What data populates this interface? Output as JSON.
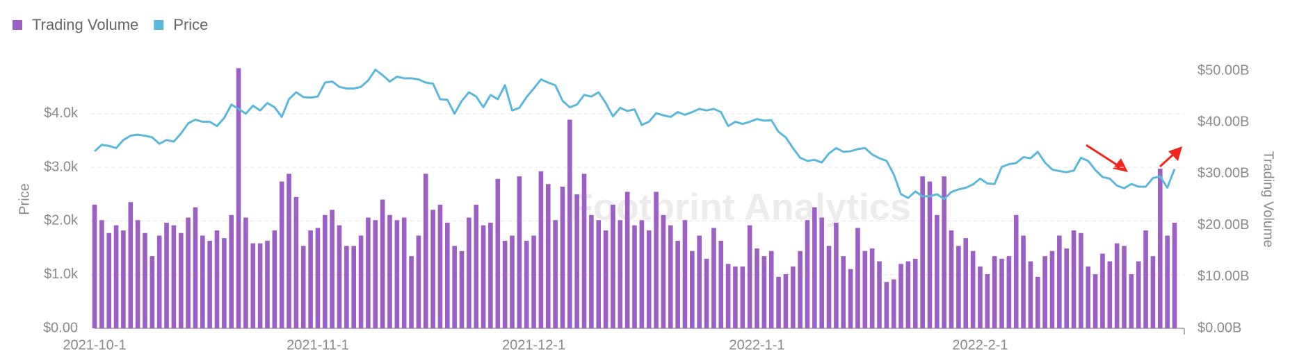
{
  "chart_data": {
    "type": "bar",
    "watermark": "Footprint Analytics",
    "ylabel": "Price",
    "y2label": "Trading Volume",
    "legend": "top-left",
    "grid": true,
    "categories": [
      "2021-10-1",
      null,
      null,
      null,
      null,
      null,
      null,
      null,
      null,
      null,
      null,
      null,
      null,
      null,
      null,
      null,
      null,
      null,
      null,
      null,
      null,
      null,
      null,
      null,
      null,
      null,
      null,
      null,
      null,
      null,
      null,
      "2021-11-1",
      null,
      null,
      null,
      null,
      null,
      null,
      null,
      null,
      null,
      null,
      null,
      null,
      null,
      null,
      null,
      null,
      null,
      null,
      null,
      null,
      null,
      null,
      null,
      null,
      null,
      null,
      null,
      null,
      null,
      "2021-12-1",
      null,
      null,
      null,
      null,
      null,
      null,
      null,
      null,
      null,
      null,
      null,
      null,
      null,
      null,
      null,
      null,
      null,
      null,
      null,
      null,
      null,
      null,
      null,
      null,
      null,
      null,
      null,
      null,
      null,
      null,
      "2022-1-1",
      null,
      null,
      null,
      null,
      null,
      null,
      null,
      null,
      null,
      null,
      null,
      null,
      null,
      null,
      null,
      null,
      null,
      null,
      null,
      null,
      null,
      null,
      null,
      null,
      null,
      null,
      null,
      null,
      null,
      null,
      "2022-2-1",
      null,
      null,
      null,
      null,
      null,
      null,
      null,
      null,
      null,
      null,
      null,
      null,
      null,
      null,
      null,
      null,
      null,
      null,
      null,
      null,
      null,
      null,
      null,
      null,
      null,
      null,
      null
    ],
    "series": [
      {
        "name": "Trading Volume",
        "type": "bar",
        "axis": "y2",
        "color": "#9b5fc5",
        "values": [
          24,
          21,
          18.5,
          20,
          19,
          24.5,
          21,
          18.5,
          14,
          18,
          20.5,
          20,
          18.5,
          21.5,
          23.5,
          18,
          17,
          19,
          17.5,
          22,
          50.5,
          21.5,
          16.5,
          16.5,
          17,
          19,
          28.5,
          30,
          25.5,
          16,
          19,
          19.5,
          22,
          23,
          20,
          16,
          16,
          18,
          21.5,
          21,
          25,
          22,
          21,
          21.5,
          14,
          18,
          30,
          23,
          24,
          20.5,
          16,
          15,
          21.5,
          24,
          20,
          20.5,
          29,
          17,
          18,
          29.5,
          17,
          18,
          30.5,
          28,
          21,
          27.5,
          40.5,
          26,
          30,
          22,
          21,
          19,
          24,
          21,
          26.5,
          20,
          21,
          19,
          26.5,
          22,
          20,
          17,
          21,
          15,
          18,
          13.5,
          19.5,
          17,
          12.5,
          12,
          12,
          20,
          15.5,
          14,
          15,
          10,
          10.5,
          12,
          15,
          21,
          23.5,
          21.5,
          16,
          20.5,
          14,
          11.5,
          19.5,
          15,
          15.5,
          13,
          9,
          9.5,
          12.5,
          13,
          13.5,
          29.5,
          28.5,
          22,
          29.5,
          19,
          16,
          17.5,
          15,
          12,
          10.5,
          14,
          13.5,
          14,
          22,
          18,
          13,
          10,
          14,
          15,
          18,
          15.5,
          19,
          18.5,
          12,
          10.5,
          14.5,
          13,
          16.5,
          16,
          10.5,
          13,
          19,
          14,
          31,
          18,
          20.5
        ]
      },
      {
        "name": "Price",
        "type": "line",
        "color": "#5cb8da",
        "values": [
          3300,
          3420,
          3400,
          3360,
          3510,
          3590,
          3610,
          3590,
          3560,
          3440,
          3510,
          3480,
          3630,
          3820,
          3890,
          3850,
          3850,
          3770,
          3920,
          4170,
          4090,
          4000,
          4150,
          4060,
          4200,
          4120,
          3940,
          4270,
          4400,
          4310,
          4300,
          4320,
          4580,
          4600,
          4500,
          4470,
          4470,
          4500,
          4620,
          4820,
          4720,
          4600,
          4690,
          4660,
          4660,
          4640,
          4580,
          4560,
          4270,
          4260,
          4000,
          4240,
          4400,
          4320,
          4120,
          4350,
          4270,
          4530,
          4060,
          4110,
          4310,
          4470,
          4640,
          4580,
          4530,
          4240,
          4120,
          4170,
          4350,
          4320,
          4400,
          4200,
          3950,
          4110,
          4050,
          4080,
          3790,
          3850,
          4010,
          3970,
          3940,
          4030,
          3980,
          4030,
          4090,
          4060,
          4090,
          4030,
          3770,
          3850,
          3810,
          3850,
          3900,
          3870,
          3880,
          3660,
          3560,
          3360,
          3180,
          3120,
          3140,
          3090,
          3260,
          3360,
          3290,
          3300,
          3340,
          3360,
          3240,
          3170,
          3120,
          2870,
          2500,
          2430,
          2550,
          2460,
          2460,
          2500,
          2410,
          2540,
          2590,
          2620,
          2680,
          2790,
          2700,
          2690,
          3010,
          3060,
          3080,
          3190,
          3170,
          3290,
          3090,
          2960,
          2930,
          2910,
          2940,
          3180,
          3120,
          2950,
          2820,
          2790,
          2660,
          2610,
          2690,
          2640,
          2640,
          2800,
          2830,
          2620,
          2970
        ]
      }
    ],
    "ylim": [
      0,
      4800
    ],
    "yticks": [
      {
        "value": 0,
        "label": "$0.00"
      },
      {
        "value": 1000,
        "label": "$1.0k"
      },
      {
        "value": 2000,
        "label": "$2.0k"
      },
      {
        "value": 3000,
        "label": "$3.0k"
      },
      {
        "value": 4000,
        "label": "$4.0k"
      }
    ],
    "y2lim": [
      0,
      50
    ],
    "y2ticks": [
      {
        "value": 0,
        "label": "$0.00B"
      },
      {
        "value": 10,
        "label": "$10.00B"
      },
      {
        "value": 20,
        "label": "$20.00B"
      },
      {
        "value": 30,
        "label": "$30.00B"
      },
      {
        "value": 40,
        "label": "$40.00B"
      },
      {
        "value": 50,
        "label": "$50.00B"
      }
    ]
  }
}
